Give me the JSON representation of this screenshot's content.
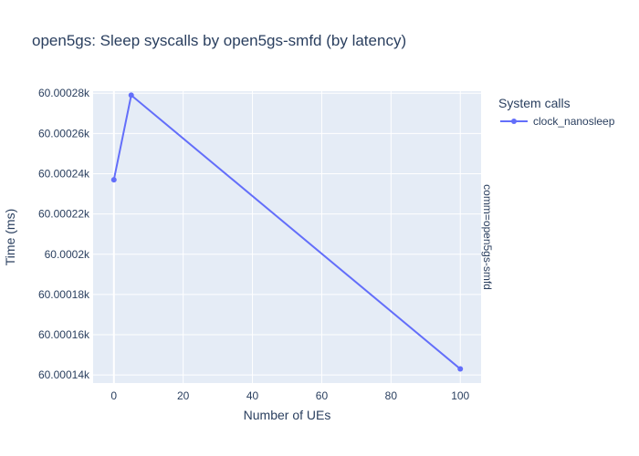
{
  "chart_data": {
    "type": "line",
    "title": "open5gs: Sleep syscalls by open5gs-smfd (by latency)",
    "xlabel": "Number of UEs",
    "ylabel": "Time (ms)",
    "xlim": [
      -6,
      106
    ],
    "ylim": [
      60.000136,
      60.000281
    ],
    "x_ticks": [
      0,
      20,
      40,
      60,
      80,
      100
    ],
    "x_tick_labels": [
      "0",
      "20",
      "40",
      "60",
      "80",
      "100"
    ],
    "y_ticks": [
      60.00014,
      60.00016,
      60.00018,
      60.0002,
      60.00022,
      60.00024,
      60.00026,
      60.00028
    ],
    "y_tick_labels": [
      "60.00014k",
      "60.00016k",
      "60.00018k",
      "60.0002k",
      "60.00022k",
      "60.00024k",
      "60.00026k",
      "60.00028k"
    ],
    "legend_title": "System calls",
    "legend_position": "right",
    "facet_label": "comm=open5gs-smfd",
    "grid": true,
    "series": [
      {
        "name": "clock_nanosleep",
        "color": "#636efa",
        "x": [
          0,
          5,
          100
        ],
        "y": [
          60.000237,
          60.000279,
          60.000143
        ]
      }
    ]
  }
}
